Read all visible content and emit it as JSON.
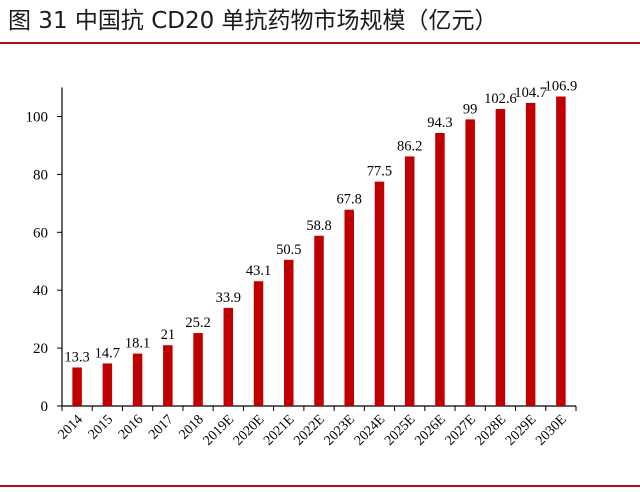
{
  "header": {
    "title": "图 31 中国抗 CD20 单抗药物市场规模（亿元）"
  },
  "chart_data": {
    "type": "bar",
    "title": "图 31 中国抗 CD20 单抗药物市场规模（亿元）",
    "xlabel": "",
    "ylabel": "",
    "ylim": [
      0,
      110
    ],
    "yticks": [
      0,
      20,
      40,
      60,
      80,
      100
    ],
    "grid": false,
    "bar_color": "#c00000",
    "categories": [
      "2014",
      "2015",
      "2016",
      "2017",
      "2018",
      "2019E",
      "2020E",
      "2021E",
      "2022E",
      "2023E",
      "2024E",
      "2025E",
      "2026E",
      "2027E",
      "2028E",
      "2029E",
      "2030E"
    ],
    "values": [
      13.3,
      14.7,
      18.1,
      21,
      25.2,
      33.9,
      43.1,
      50.5,
      58.8,
      67.8,
      77.5,
      86.2,
      94.3,
      99,
      102.6,
      104.7,
      106.9
    ],
    "value_labels": [
      "13.3",
      "14.7",
      "18.1",
      "21",
      "25.2",
      "33.9",
      "43.1",
      "50.5",
      "58.8",
      "67.8",
      "77.5",
      "86.2",
      "94.3",
      "99",
      "102.6",
      "104.7",
      "106.9"
    ]
  }
}
